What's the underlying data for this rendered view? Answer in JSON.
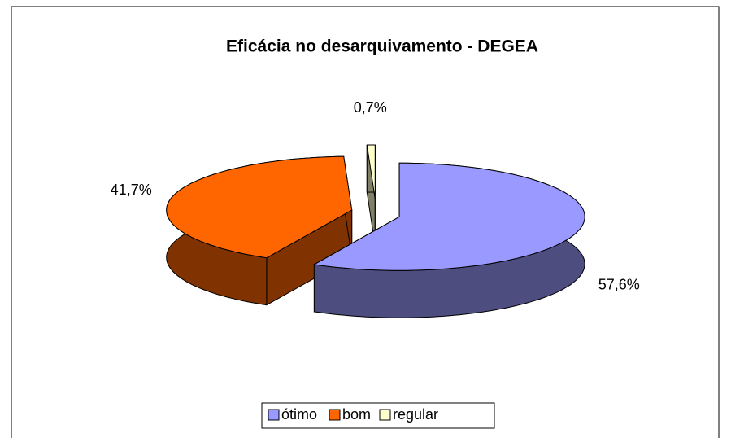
{
  "chart_data": {
    "type": "pie3d",
    "title": "Eficácia no desarquivamento - DEGEA",
    "categories": [
      "ótimo",
      "bom",
      "regular"
    ],
    "values": [
      57.6,
      41.7,
      0.7
    ],
    "value_labels": [
      "57,6%",
      "41,7%",
      "0,7%"
    ],
    "colors": [
      "#9999ff",
      "#ff6600",
      "#ffffcc"
    ],
    "legend": "bottom"
  }
}
